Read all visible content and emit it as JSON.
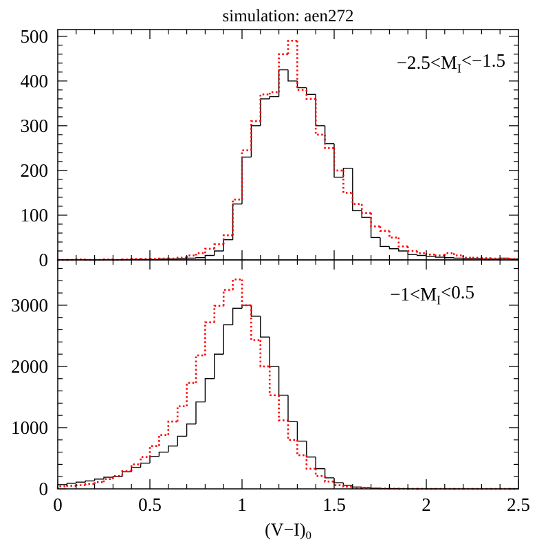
{
  "chart_data": [
    {
      "type": "histogram",
      "title": "simulation: aen272",
      "annotation": [
        {
          "text": "−2.5<M"
        },
        {
          "text": "I",
          "sub": true
        },
        {
          "text": "<−1.5"
        }
      ],
      "bins": [
        0,
        0.05,
        0.1,
        0.15,
        0.2,
        0.25,
        0.3,
        0.35,
        0.4,
        0.45,
        0.5,
        0.55,
        0.6,
        0.65,
        0.7,
        0.75,
        0.8,
        0.85,
        0.9,
        0.95,
        1,
        1.05,
        1.1,
        1.15,
        1.2,
        1.25,
        1.3,
        1.35,
        1.4,
        1.45,
        1.5,
        1.55,
        1.6,
        1.65,
        1.7,
        1.75,
        1.8,
        1.85,
        1.9,
        1.95,
        2,
        2.05,
        2.1,
        2.15,
        2.2,
        2.25,
        2.3,
        2.35,
        2.4,
        2.45,
        2.5
      ],
      "series": [
        {
          "color": "#000000",
          "style": "solid",
          "values": [
            0,
            0,
            0,
            0,
            0,
            0,
            0,
            0,
            1,
            1,
            1,
            2,
            2,
            3,
            4,
            5,
            10,
            20,
            45,
            125,
            230,
            300,
            360,
            365,
            425,
            400,
            385,
            370,
            300,
            260,
            185,
            205,
            110,
            95,
            50,
            30,
            25,
            20,
            12,
            10,
            8,
            6,
            5,
            4,
            3,
            3,
            2,
            2,
            4,
            2
          ]
        },
        {
          "color": "#ff0000",
          "style": "dotted",
          "values": [
            0,
            0,
            1,
            0,
            0,
            1,
            0,
            1,
            2,
            2,
            2,
            3,
            3,
            5,
            10,
            15,
            25,
            35,
            55,
            135,
            245,
            310,
            370,
            375,
            460,
            490,
            380,
            360,
            280,
            250,
            200,
            150,
            125,
            105,
            75,
            65,
            50,
            30,
            20,
            15,
            12,
            10,
            15,
            10,
            5,
            5,
            4,
            3,
            2,
            2
          ]
        }
      ],
      "xlim": [
        0,
        2.5
      ],
      "xticks": [
        0,
        0.5,
        1,
        1.5,
        2,
        2.5
      ],
      "xtick_labels": false,
      "ylim": [
        0,
        515
      ],
      "yticks": [
        0,
        100,
        200,
        300,
        400,
        500
      ]
    },
    {
      "type": "histogram",
      "annotation": [
        {
          "text": "−1<M"
        },
        {
          "text": "I",
          "sub": true
        },
        {
          "text": "<0.5"
        }
      ],
      "xlabel": [
        {
          "text": "(V−I)"
        },
        {
          "text": "0",
          "sub": true
        }
      ],
      "bins": [
        0,
        0.05,
        0.1,
        0.15,
        0.2,
        0.25,
        0.3,
        0.35,
        0.4,
        0.45,
        0.5,
        0.55,
        0.6,
        0.65,
        0.7,
        0.75,
        0.8,
        0.85,
        0.9,
        0.95,
        1,
        1.05,
        1.1,
        1.15,
        1.2,
        1.25,
        1.3,
        1.35,
        1.4,
        1.45,
        1.5,
        1.55,
        1.6,
        1.65,
        1.7,
        1.75,
        1.8,
        1.85,
        1.9,
        1.95,
        2,
        2.05,
        2.1,
        2.15,
        2.2,
        2.25,
        2.3,
        2.35,
        2.4,
        2.45,
        2.5
      ],
      "series": [
        {
          "color": "#000000",
          "style": "solid",
          "values": [
            70,
            90,
            110,
            130,
            160,
            190,
            200,
            280,
            350,
            420,
            530,
            600,
            700,
            860,
            1060,
            1420,
            1800,
            2200,
            2680,
            2950,
            3000,
            2820,
            2480,
            2000,
            1530,
            1100,
            780,
            520,
            330,
            180,
            100,
            60,
            30,
            20,
            10,
            5,
            3,
            2,
            1,
            1,
            0,
            0,
            0,
            0,
            0,
            0,
            0,
            0,
            0,
            0
          ]
        },
        {
          "color": "#ff0000",
          "style": "dotted",
          "values": [
            40,
            50,
            60,
            80,
            110,
            160,
            210,
            290,
            400,
            520,
            700,
            880,
            1100,
            1350,
            1730,
            2180,
            2720,
            2990,
            3250,
            3420,
            3000,
            2430,
            2000,
            1530,
            1120,
            800,
            550,
            330,
            210,
            120,
            60,
            35,
            20,
            12,
            8,
            5,
            3,
            2,
            1,
            1,
            0,
            0,
            0,
            0,
            0,
            0,
            0,
            0,
            0,
            0
          ]
        }
      ],
      "xlim": [
        0,
        2.5
      ],
      "xticks": [
        0,
        0.5,
        1,
        1.5,
        2,
        2.5
      ],
      "xtick_labels": true,
      "ylim": [
        0,
        3740
      ],
      "yticks": [
        0,
        1000,
        2000,
        3000
      ]
    }
  ]
}
